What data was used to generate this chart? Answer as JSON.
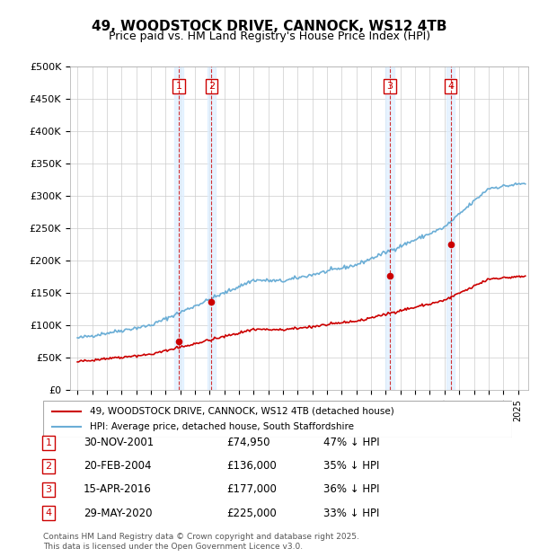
{
  "title": "49, WOODSTOCK DRIVE, CANNOCK, WS12 4TB",
  "subtitle": "Price paid vs. HM Land Registry's House Price Index (HPI)",
  "legend_line1": "49, WOODSTOCK DRIVE, CANNOCK, WS12 4TB (detached house)",
  "legend_line2": "HPI: Average price, detached house, South Staffordshire",
  "footer": "Contains HM Land Registry data © Crown copyright and database right 2025.\nThis data is licensed under the Open Government Licence v3.0.",
  "ylim": [
    0,
    500000
  ],
  "yticks": [
    0,
    50000,
    100000,
    150000,
    200000,
    250000,
    300000,
    350000,
    400000,
    450000,
    500000
  ],
  "ytick_labels": [
    "£0",
    "£50K",
    "£100K",
    "£150K",
    "£200K",
    "£250K",
    "£300K",
    "£350K",
    "£400K",
    "£450K",
    "£500K"
  ],
  "sale_dates_num": [
    2001.91,
    2004.13,
    2016.29,
    2020.41
  ],
  "sale_prices": [
    74950,
    136000,
    177000,
    225000
  ],
  "sale_labels": [
    "1",
    "2",
    "3",
    "4"
  ],
  "transaction_dates": [
    "30-NOV-2001",
    "20-FEB-2004",
    "15-APR-2016",
    "29-MAY-2020"
  ],
  "transaction_prices": [
    "£74,950",
    "£136,000",
    "£177,000",
    "£225,000"
  ],
  "transaction_notes": [
    "47% ↓ HPI",
    "35% ↓ HPI",
    "36% ↓ HPI",
    "33% ↓ HPI"
  ],
  "hpi_color": "#6baed6",
  "sale_color": "#cc0000",
  "vline_color": "#cc0000",
  "shade_color": "#ddeeff",
  "background_color": "#ffffff",
  "grid_color": "#cccccc"
}
